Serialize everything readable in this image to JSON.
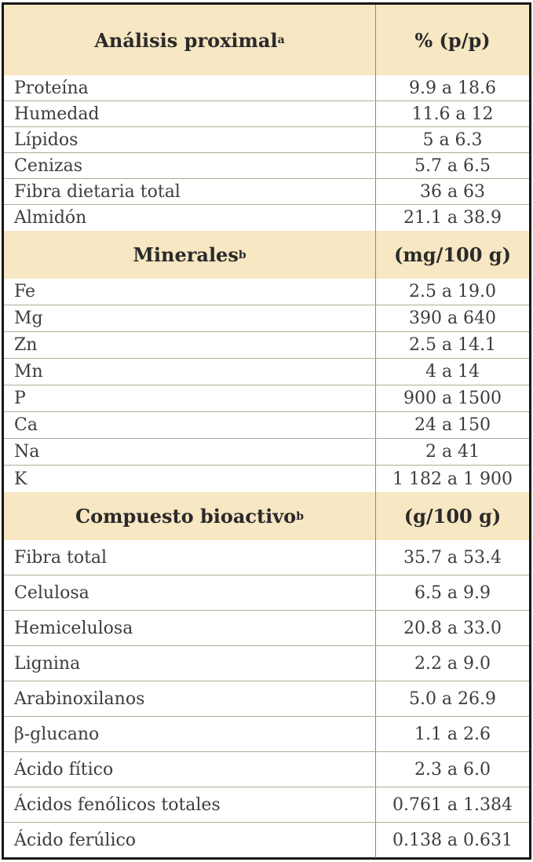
{
  "table": {
    "sections": [
      {
        "header": {
          "label": "Análisis proximal",
          "sup": "a",
          "unit": "% (p/p)"
        },
        "rows": [
          {
            "name": "Proteína",
            "value": "9.9 a 18.6"
          },
          {
            "name": "Humedad",
            "value": "11.6 a 12"
          },
          {
            "name": "Lípidos",
            "value": "5 a 6.3"
          },
          {
            "name": "Cenizas",
            "value": "5.7 a 6.5"
          },
          {
            "name": "Fibra dietaria total",
            "value": "36 a 63"
          },
          {
            "name": "Almidón",
            "value": "21.1 a 38.9"
          }
        ]
      },
      {
        "header": {
          "label": "Minerales",
          "sup": "b",
          "unit": "(mg/100 g)"
        },
        "rows": [
          {
            "name": "Fe",
            "value": "2.5 a 19.0"
          },
          {
            "name": "Mg",
            "value": "390 a 640"
          },
          {
            "name": "Zn",
            "value": "2.5 a 14.1"
          },
          {
            "name": "Mn",
            "value": "4 a 14"
          },
          {
            "name": "P",
            "value": "900 a 1500"
          },
          {
            "name": "Ca",
            "value": "24 a 150"
          },
          {
            "name": "Na",
            "value": "2 a 41"
          },
          {
            "name": "K",
            "value": "1 182 a 1 900"
          }
        ]
      },
      {
        "header": {
          "label": "Compuesto bioactivo",
          "sup": "b",
          "unit": "(g/100 g)"
        },
        "rows": [
          {
            "name": "Fibra total",
            "value": "35.7 a 53.4"
          },
          {
            "name": "Celulosa",
            "value": "6.5 a 9.9"
          },
          {
            "name": "Hemicelulosa",
            "value": "20.8 a 33.0"
          },
          {
            "name": "Lignina",
            "value": "2.2 a 9.0"
          },
          {
            "name": "Arabinoxilanos",
            "value": "5.0 a 26.9"
          },
          {
            "name": "β-glucano",
            "value": "1.1 a 2.6"
          },
          {
            "name": "Ácido fítico",
            "value": "2.3 a 6.0"
          },
          {
            "name": "Ácidos fenólicos totales",
            "value": "0.761 a 1.384"
          },
          {
            "name": "Ácido ferúlico",
            "value": "0.138 a 0.631"
          }
        ]
      }
    ],
    "colors": {
      "header_bg": "#f7e7c2",
      "border": "#161616",
      "separator": "#b3ab99",
      "text": "#3d3d3d"
    }
  }
}
